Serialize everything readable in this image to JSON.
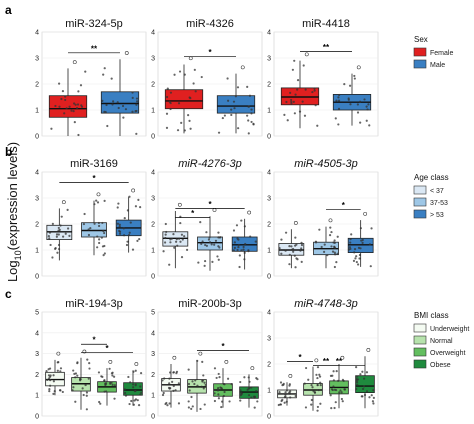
{
  "ylabel": "Log10(expression levels)",
  "ylabel_base": "Log",
  "ylabel_sub": "10",
  "ylabel_rest": "(expression levels)",
  "rows": [
    {
      "label": "a",
      "legend": {
        "title": "Sex",
        "entries": [
          {
            "label": "Female",
            "color": "#e02020"
          },
          {
            "label": "Male",
            "color": "#3a7fc2"
          }
        ]
      }
    },
    {
      "label": "b",
      "legend": {
        "title": "Age class",
        "entries": [
          {
            "label": "< 37",
            "color": "#dbe8f4"
          },
          {
            "label": "37-53",
            "color": "#9ec7e6"
          },
          {
            "label": "> 53",
            "color": "#3a7fc2"
          }
        ]
      }
    },
    {
      "label": "c",
      "legend": {
        "title": "BMI class",
        "entries": [
          {
            "label": "Underweight",
            "color": "#f4fbf2"
          },
          {
            "label": "Normal",
            "color": "#b7e3ad"
          },
          {
            "label": "Overweight",
            "color": "#63be5f"
          },
          {
            "label": "Obese",
            "color": "#1f8a3e"
          }
        ]
      }
    }
  ],
  "chart_data": [
    {
      "type": "box",
      "row": 0,
      "col": 0,
      "title": "miR-324-5p",
      "italic": false,
      "ylim": [
        0,
        4
      ],
      "yticks": [
        0,
        1,
        2,
        3,
        4
      ],
      "groups": [
        {
          "name": "Female",
          "color": "#e02020",
          "q1": 0.72,
          "median": 1.05,
          "q3": 1.55,
          "whisker_low": 0.0,
          "whisker_high": 2.6
        },
        {
          "name": "Male",
          "color": "#3a7fc2",
          "q1": 0.88,
          "median": 1.25,
          "q3": 1.7,
          "whisker_low": 0.0,
          "whisker_high": 2.95
        }
      ],
      "significance": [
        {
          "from": 0,
          "to": 1,
          "label": "**",
          "y": 3.2
        }
      ]
    },
    {
      "type": "box",
      "row": 0,
      "col": 1,
      "title": "miR-4326",
      "italic": false,
      "ylim": [
        0,
        4
      ],
      "yticks": [
        0,
        1,
        2,
        3,
        4
      ],
      "groups": [
        {
          "name": "Female",
          "color": "#e02020",
          "q1": 1.05,
          "median": 1.35,
          "q3": 1.78,
          "whisker_low": 0.1,
          "whisker_high": 2.75
        },
        {
          "name": "Male",
          "color": "#3a7fc2",
          "q1": 0.88,
          "median": 1.15,
          "q3": 1.55,
          "whisker_low": 0.1,
          "whisker_high": 2.4
        }
      ],
      "significance": [
        {
          "from": 0,
          "to": 1,
          "label": "*",
          "y": 3.05
        }
      ]
    },
    {
      "type": "box",
      "row": 0,
      "col": 2,
      "title": "miR-4418",
      "italic": false,
      "ylim": [
        0,
        4
      ],
      "yticks": [
        0,
        1,
        2,
        3,
        4
      ],
      "groups": [
        {
          "name": "Female",
          "color": "#e02020",
          "q1": 1.2,
          "median": 1.5,
          "q3": 1.85,
          "whisker_low": 0.3,
          "whisker_high": 2.9
        },
        {
          "name": "Male",
          "color": "#3a7fc2",
          "q1": 1.0,
          "median": 1.3,
          "q3": 1.6,
          "whisker_low": 0.4,
          "whisker_high": 2.4
        }
      ],
      "significance": [
        {
          "from": 0,
          "to": 1,
          "label": "**",
          "y": 3.25
        }
      ]
    },
    {
      "type": "box",
      "row": 1,
      "col": 0,
      "title": "miR-3169",
      "italic": false,
      "ylim": [
        0,
        4
      ],
      "yticks": [
        0,
        1,
        2,
        3,
        4
      ],
      "groups": [
        {
          "name": "< 37",
          "color": "#dbe8f4",
          "q1": 1.4,
          "median": 1.7,
          "q3": 1.95,
          "whisker_low": 0.6,
          "whisker_high": 2.6
        },
        {
          "name": "37-53",
          "color": "#9ec7e6",
          "q1": 1.5,
          "median": 1.75,
          "q3": 2.05,
          "whisker_low": 0.8,
          "whisker_high": 2.9
        },
        {
          "name": "> 53",
          "color": "#3a7fc2",
          "q1": 1.55,
          "median": 1.85,
          "q3": 2.15,
          "whisker_low": 0.9,
          "whisker_high": 3.05
        }
      ],
      "significance": [
        {
          "from": 0,
          "to": 2,
          "label": "*",
          "y": 3.6
        }
      ]
    },
    {
      "type": "box",
      "row": 1,
      "col": 1,
      "title": "miR-4276-3p",
      "italic": true,
      "ylim": [
        0,
        4
      ],
      "yticks": [
        0,
        1,
        2,
        3,
        4
      ],
      "groups": [
        {
          "name": "< 37",
          "color": "#dbe8f4",
          "q1": 1.15,
          "median": 1.45,
          "q3": 1.7,
          "whisker_low": 0.3,
          "whisker_high": 2.5
        },
        {
          "name": "37-53",
          "color": "#9ec7e6",
          "q1": 1.0,
          "median": 1.28,
          "q3": 1.5,
          "whisker_low": 0.2,
          "whisker_high": 2.3
        },
        {
          "name": "> 53",
          "color": "#3a7fc2",
          "q1": 0.95,
          "median": 1.2,
          "q3": 1.5,
          "whisker_low": 0.25,
          "whisker_high": 2.2
        }
      ],
      "significance": [
        {
          "from": 0,
          "to": 1,
          "label": "*",
          "y": 2.25
        },
        {
          "from": 0,
          "to": 2,
          "label": "*",
          "y": 2.6
        }
      ]
    },
    {
      "type": "box",
      "row": 1,
      "col": 2,
      "title": "miR-4505-3p",
      "italic": true,
      "ylim": [
        0,
        4
      ],
      "yticks": [
        0,
        1,
        2,
        3,
        4
      ],
      "groups": [
        {
          "name": "< 37",
          "color": "#dbe8f4",
          "q1": 0.8,
          "median": 1.0,
          "q3": 1.25,
          "whisker_low": 0.3,
          "whisker_high": 1.8
        },
        {
          "name": "37-53",
          "color": "#9ec7e6",
          "q1": 0.82,
          "median": 1.05,
          "q3": 1.3,
          "whisker_low": 0.3,
          "whisker_high": 1.9
        },
        {
          "name": "> 53",
          "color": "#3a7fc2",
          "q1": 0.9,
          "median": 1.2,
          "q3": 1.45,
          "whisker_low": 0.35,
          "whisker_high": 2.15
        }
      ],
      "significance": [
        {
          "from": 1,
          "to": 2,
          "label": "*",
          "y": 2.55
        }
      ]
    },
    {
      "type": "box",
      "row": 2,
      "col": 0,
      "title": "miR-194-3p",
      "italic": false,
      "ylim": [
        0,
        5
      ],
      "yticks": [
        0,
        1,
        2,
        3,
        4,
        5
      ],
      "groups": [
        {
          "name": "Underweight",
          "color": "#f4fbf2",
          "q1": 1.45,
          "median": 1.75,
          "q3": 2.1,
          "whisker_low": 1.0,
          "whisker_high": 2.7
        },
        {
          "name": "Normal",
          "color": "#b7e3ad",
          "q1": 1.2,
          "median": 1.55,
          "q3": 1.85,
          "whisker_low": 0.3,
          "whisker_high": 2.8
        },
        {
          "name": "Overweight",
          "color": "#63be5f",
          "q1": 1.15,
          "median": 1.4,
          "q3": 1.65,
          "whisker_low": 0.5,
          "whisker_high": 2.3
        },
        {
          "name": "Obese",
          "color": "#1f8a3e",
          "q1": 1.0,
          "median": 1.25,
          "q3": 1.6,
          "whisker_low": 0.5,
          "whisker_high": 2.2
        }
      ],
      "significance": [
        {
          "from": 1,
          "to": 2,
          "label": "*",
          "y": 3.45
        },
        {
          "from": 1,
          "to": 3,
          "label": "*",
          "y": 3.05
        }
      ]
    },
    {
      "type": "box",
      "row": 2,
      "col": 1,
      "title": "miR-200b-3p",
      "italic": false,
      "ylim": [
        0,
        5
      ],
      "yticks": [
        0,
        1,
        2,
        3,
        4,
        5
      ],
      "groups": [
        {
          "name": "Underweight",
          "color": "#f4fbf2",
          "q1": 1.2,
          "median": 1.5,
          "q3": 1.8,
          "whisker_low": 0.4,
          "whisker_high": 2.5
        },
        {
          "name": "Normal",
          "color": "#b7e3ad",
          "q1": 1.1,
          "median": 1.4,
          "q3": 1.75,
          "whisker_low": 0.2,
          "whisker_high": 2.7
        },
        {
          "name": "Overweight",
          "color": "#63be5f",
          "q1": 0.95,
          "median": 1.25,
          "q3": 1.55,
          "whisker_low": 0.4,
          "whisker_high": 2.3
        },
        {
          "name": "Obese",
          "color": "#1f8a3e",
          "q1": 0.85,
          "median": 1.15,
          "q3": 1.4,
          "whisker_low": 0.4,
          "whisker_high": 2.0
        }
      ],
      "significance": [
        {
          "from": 1,
          "to": 3,
          "label": "*",
          "y": 3.15
        }
      ]
    },
    {
      "type": "box",
      "row": 2,
      "col": 2,
      "title": "miR-4748-3p",
      "italic": true,
      "ylim": [
        0,
        4
      ],
      "yticks": [
        0,
        1,
        2,
        3,
        4
      ],
      "groups": [
        {
          "name": "Underweight",
          "color": "#f4fbf2",
          "q1": 0.7,
          "median": 0.85,
          "q3": 1.0,
          "whisker_low": 0.4,
          "whisker_high": 1.3
        },
        {
          "name": "Normal",
          "color": "#b7e3ad",
          "q1": 0.8,
          "median": 1.0,
          "q3": 1.25,
          "whisker_low": 0.2,
          "whisker_high": 1.9
        },
        {
          "name": "Overweight",
          "color": "#63be5f",
          "q1": 0.85,
          "median": 1.1,
          "q3": 1.35,
          "whisker_low": 0.3,
          "whisker_high": 2.0
        },
        {
          "name": "Obese",
          "color": "#1f8a3e",
          "q1": 0.9,
          "median": 1.15,
          "q3": 1.55,
          "whisker_low": 0.3,
          "whisker_high": 2.3
        }
      ],
      "significance": [
        {
          "from": 0,
          "to": 1,
          "label": "*",
          "y": 2.1
        },
        {
          "from": 1,
          "to": 2,
          "label": "**",
          "y": 1.95
        },
        {
          "from": 1,
          "to": 3,
          "label": "**",
          "y": 1.95
        }
      ]
    }
  ]
}
